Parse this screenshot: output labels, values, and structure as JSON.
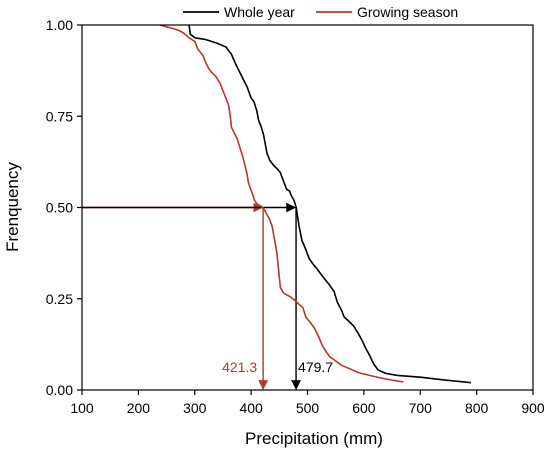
{
  "chart_data": {
    "type": "line",
    "xlabel": "Precipitation (mm)",
    "ylabel": "Frenquency",
    "xlim": [
      100,
      900
    ],
    "ylim": [
      0,
      1.0
    ],
    "x_ticks": [
      "100",
      "200",
      "300",
      "400",
      "500",
      "600",
      "700",
      "800",
      "900"
    ],
    "y_ticks": [
      "0.00",
      "0.25",
      "0.50",
      "0.75",
      "1.00"
    ],
    "legend_position": "top-right",
    "series": [
      {
        "name": "Whole year",
        "color": "#000000",
        "points": [
          [
            290,
            1.0
          ],
          [
            292,
            0.975
          ],
          [
            300,
            0.965
          ],
          [
            320,
            0.96
          ],
          [
            340,
            0.95
          ],
          [
            355,
            0.94
          ],
          [
            365,
            0.92
          ],
          [
            372,
            0.895
          ],
          [
            380,
            0.87
          ],
          [
            388,
            0.845
          ],
          [
            393,
            0.83
          ],
          [
            400,
            0.8
          ],
          [
            405,
            0.79
          ],
          [
            410,
            0.765
          ],
          [
            413,
            0.74
          ],
          [
            418,
            0.72
          ],
          [
            422,
            0.7
          ],
          [
            425,
            0.675
          ],
          [
            428,
            0.65
          ],
          [
            433,
            0.63
          ],
          [
            440,
            0.615
          ],
          [
            447,
            0.605
          ],
          [
            452,
            0.595
          ],
          [
            458,
            0.57
          ],
          [
            463,
            0.55
          ],
          [
            468,
            0.545
          ],
          [
            472,
            0.53
          ],
          [
            476,
            0.52
          ],
          [
            480,
            0.5
          ],
          [
            485,
            0.45
          ],
          [
            490,
            0.41
          ],
          [
            497,
            0.385
          ],
          [
            503,
            0.36
          ],
          [
            510,
            0.345
          ],
          [
            518,
            0.33
          ],
          [
            530,
            0.305
          ],
          [
            538,
            0.29
          ],
          [
            547,
            0.27
          ],
          [
            553,
            0.24
          ],
          [
            560,
            0.22
          ],
          [
            565,
            0.2
          ],
          [
            572,
            0.19
          ],
          [
            582,
            0.175
          ],
          [
            590,
            0.155
          ],
          [
            597,
            0.135
          ],
          [
            603,
            0.115
          ],
          [
            610,
            0.095
          ],
          [
            618,
            0.07
          ],
          [
            625,
            0.055
          ],
          [
            640,
            0.045
          ],
          [
            660,
            0.04
          ],
          [
            700,
            0.035
          ],
          [
            740,
            0.028
          ],
          [
            790,
            0.02
          ]
        ]
      },
      {
        "name": "Growing season",
        "color": "#b23a2a",
        "points": [
          [
            238,
            1.0
          ],
          [
            250,
            0.995
          ],
          [
            262,
            0.99
          ],
          [
            272,
            0.985
          ],
          [
            280,
            0.978
          ],
          [
            290,
            0.965
          ],
          [
            300,
            0.955
          ],
          [
            305,
            0.935
          ],
          [
            315,
            0.915
          ],
          [
            320,
            0.895
          ],
          [
            325,
            0.88
          ],
          [
            330,
            0.87
          ],
          [
            337,
            0.86
          ],
          [
            345,
            0.84
          ],
          [
            350,
            0.82
          ],
          [
            355,
            0.8
          ],
          [
            360,
            0.78
          ],
          [
            363,
            0.75
          ],
          [
            365,
            0.72
          ],
          [
            370,
            0.705
          ],
          [
            375,
            0.69
          ],
          [
            380,
            0.665
          ],
          [
            385,
            0.64
          ],
          [
            390,
            0.61
          ],
          [
            393,
            0.59
          ],
          [
            395,
            0.57
          ],
          [
            398,
            0.555
          ],
          [
            403,
            0.535
          ],
          [
            406,
            0.52
          ],
          [
            410,
            0.51
          ],
          [
            421,
            0.5
          ],
          [
            432,
            0.47
          ],
          [
            437,
            0.45
          ],
          [
            440,
            0.425
          ],
          [
            443,
            0.4
          ],
          [
            446,
            0.37
          ],
          [
            448,
            0.34
          ],
          [
            450,
            0.31
          ],
          [
            452,
            0.28
          ],
          [
            458,
            0.265
          ],
          [
            470,
            0.255
          ],
          [
            478,
            0.245
          ],
          [
            485,
            0.235
          ],
          [
            492,
            0.225
          ],
          [
            497,
            0.2
          ],
          [
            505,
            0.185
          ],
          [
            512,
            0.17
          ],
          [
            520,
            0.145
          ],
          [
            527,
            0.12
          ],
          [
            533,
            0.105
          ],
          [
            540,
            0.09
          ],
          [
            548,
            0.082
          ],
          [
            560,
            0.068
          ],
          [
            575,
            0.058
          ],
          [
            590,
            0.048
          ],
          [
            610,
            0.04
          ],
          [
            630,
            0.033
          ],
          [
            650,
            0.027
          ],
          [
            670,
            0.022
          ]
        ]
      }
    ],
    "annotations": [
      {
        "label": "421.3",
        "x": 421.3,
        "y": 0.5,
        "color": "#b23a2a"
      },
      {
        "label": "479.7",
        "x": 479.7,
        "y": 0.5,
        "color": "#000000"
      }
    ]
  }
}
